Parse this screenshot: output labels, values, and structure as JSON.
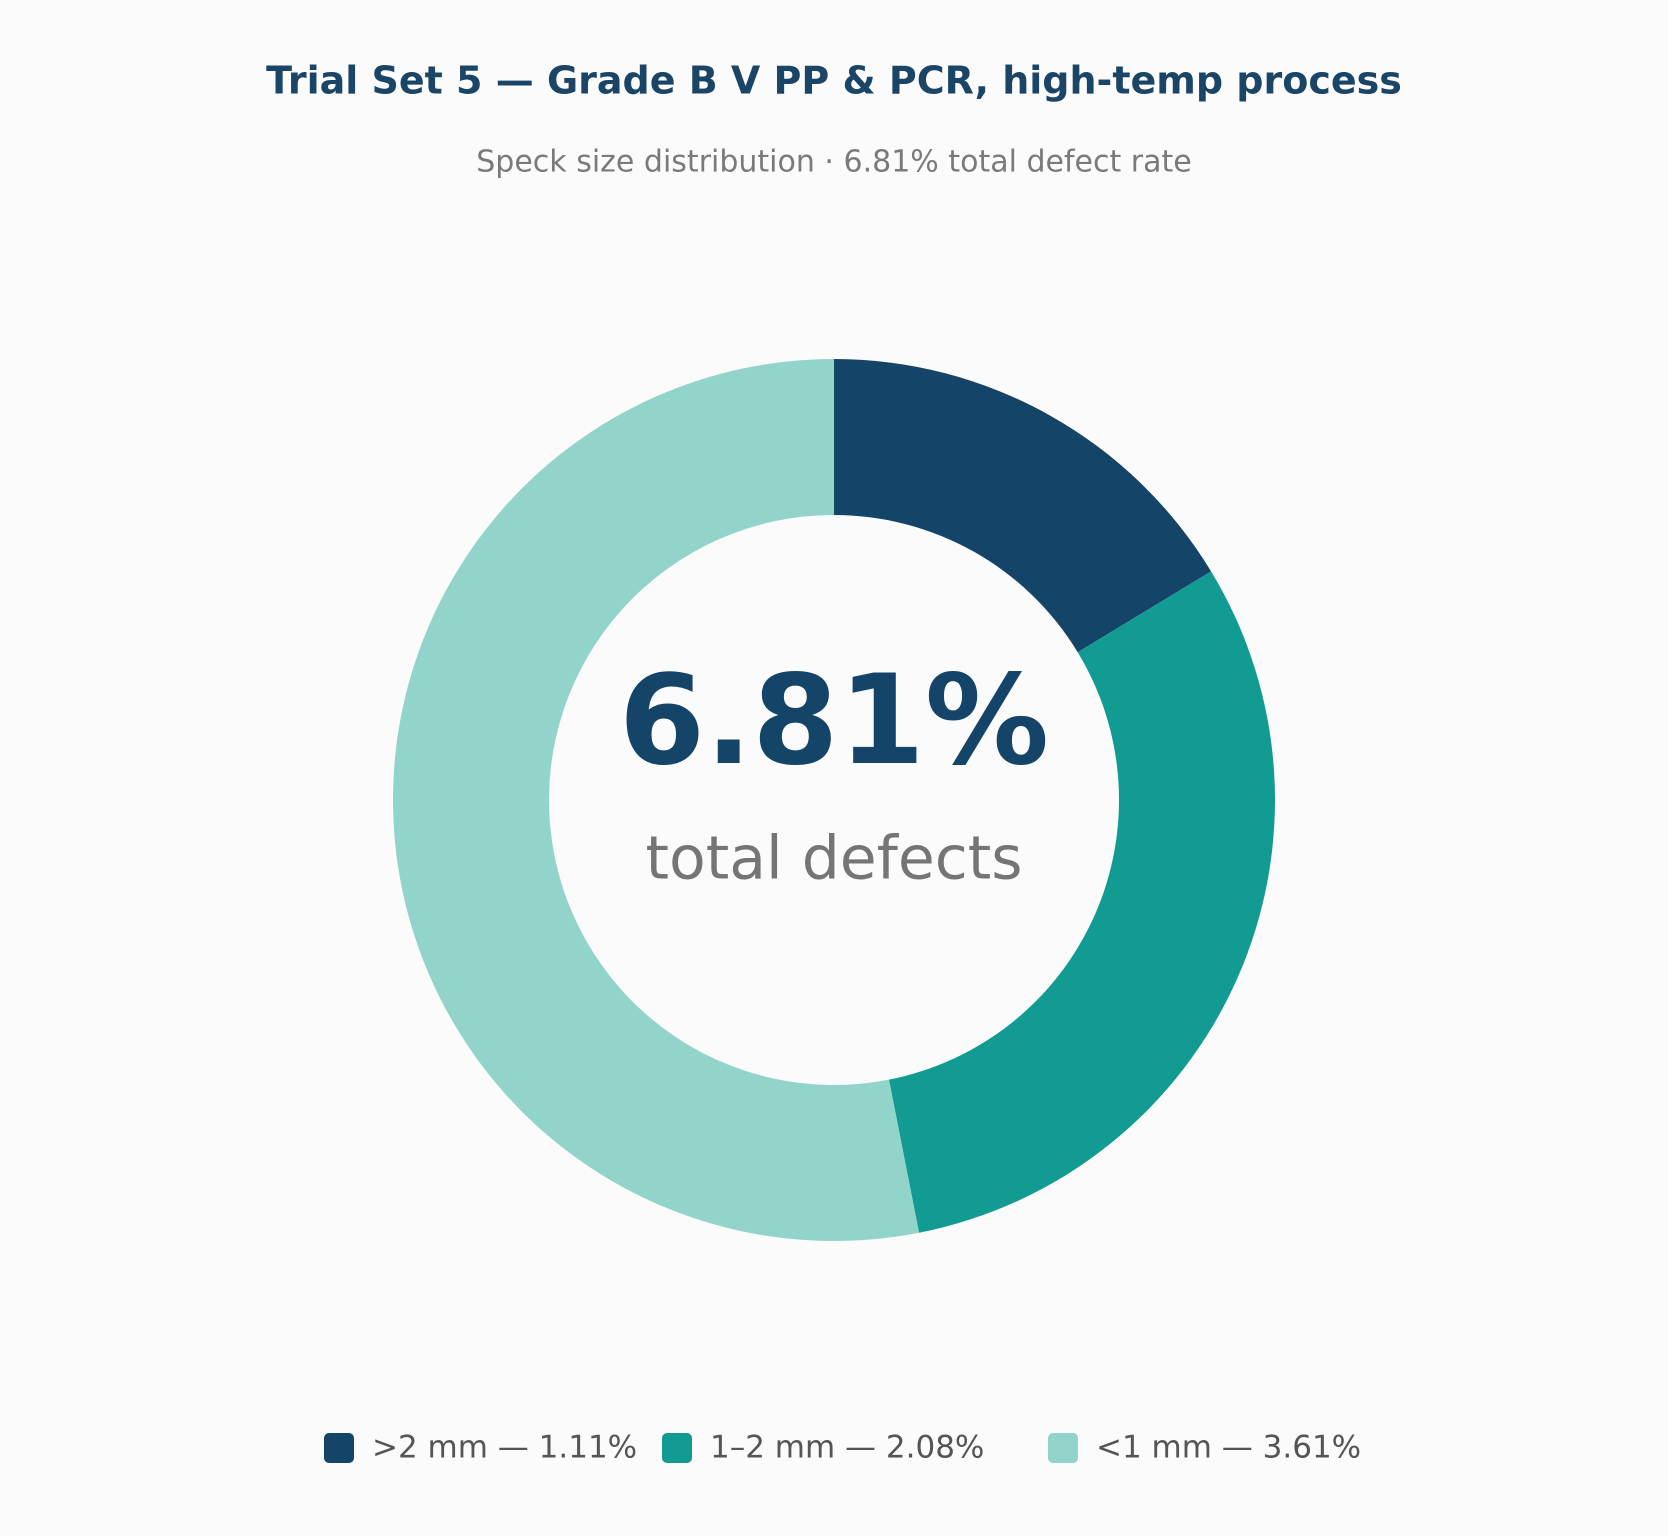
{
  "chart_data": {
    "type": "donut",
    "title": "Trial Set 5 — Grade B V PP & PCR, high-temp process",
    "subtitle": "Speck size distribution · 6.81% total defect rate",
    "labels": [
      ">2 mm — 1.11%",
      "1–2 mm — 2.08%",
      "<1 mm — 3.61%"
    ],
    "values": [
      1.11,
      2.08,
      3.61
    ],
    "colors": [
      "#154469",
      "#119b93",
      "#93d4ca"
    ],
    "center_label": "6.81%",
    "center_caption": "total defects",
    "legend": "bottom"
  }
}
